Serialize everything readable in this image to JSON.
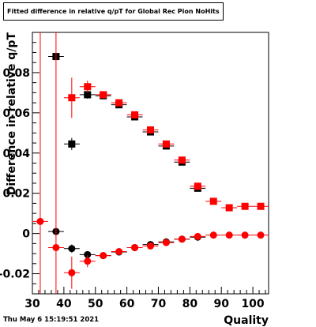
{
  "title": "Fitted difference in relative q/pT for Global Rec Pion NoHits",
  "timestamp": "Thu May  6 15:19:51 2021",
  "chart_data": {
    "type": "scatter",
    "xlabel": "Quality",
    "ylabel": "Difference in relative q/pT",
    "xlim": [
      30,
      105
    ],
    "ylim": [
      -0.03,
      0.1
    ],
    "xticks": [
      "30",
      "40",
      "50",
      "60",
      "70",
      "80",
      "90",
      "100"
    ],
    "yticks": [
      "-0.02",
      "0",
      "0.02",
      "0.04",
      "0.06",
      "0.08"
    ],
    "series": [
      {
        "color": "#000000",
        "marker": "square",
        "points": [
          {
            "x": 37.5,
            "y": 0.088,
            "xerr": 2.5,
            "yerr": 0.0
          },
          {
            "x": 42.5,
            "y": 0.0445,
            "xerr": 2.5,
            "yerr": 0.003
          },
          {
            "x": 47.5,
            "y": 0.069,
            "xerr": 2.5,
            "yerr": 0.002
          },
          {
            "x": 52.5,
            "y": 0.0685,
            "xerr": 2.5,
            "yerr": 0.001
          },
          {
            "x": 57.5,
            "y": 0.064,
            "xerr": 2.5,
            "yerr": 0.001
          },
          {
            "x": 62.5,
            "y": 0.058,
            "xerr": 2.5,
            "yerr": 0.0005
          },
          {
            "x": 67.5,
            "y": 0.0505,
            "xerr": 2.5,
            "yerr": 0.0005
          },
          {
            "x": 72.5,
            "y": 0.0435,
            "xerr": 2.5,
            "yerr": 0.0005
          },
          {
            "x": 77.5,
            "y": 0.0355,
            "xerr": 2.5,
            "yerr": 0.0005
          },
          {
            "x": 82.5,
            "y": 0.0225,
            "xerr": 2.5,
            "yerr": 0.0005
          }
        ]
      },
      {
        "color": "#ff0000",
        "marker": "square",
        "points": [
          {
            "x": 42.5,
            "y": 0.0675,
            "xerr": 2.5,
            "yerr": 0.01
          },
          {
            "x": 47.5,
            "y": 0.073,
            "xerr": 2.5,
            "yerr": 0.003
          },
          {
            "x": 52.5,
            "y": 0.069,
            "xerr": 2.5,
            "yerr": 0.001
          },
          {
            "x": 57.5,
            "y": 0.065,
            "xerr": 2.5,
            "yerr": 0.001
          },
          {
            "x": 62.5,
            "y": 0.059,
            "xerr": 2.5,
            "yerr": 0.0005
          },
          {
            "x": 67.5,
            "y": 0.0515,
            "xerr": 2.5,
            "yerr": 0.0005
          },
          {
            "x": 72.5,
            "y": 0.0445,
            "xerr": 2.5,
            "yerr": 0.0005
          },
          {
            "x": 77.5,
            "y": 0.0365,
            "xerr": 2.5,
            "yerr": 0.0005
          },
          {
            "x": 82.5,
            "y": 0.0235,
            "xerr": 2.5,
            "yerr": 0.0005
          },
          {
            "x": 87.5,
            "y": 0.016,
            "xerr": 2.5,
            "yerr": 0.0005
          },
          {
            "x": 92.5,
            "y": 0.0128,
            "xerr": 2.5,
            "yerr": 0.0005
          },
          {
            "x": 97.5,
            "y": 0.0135,
            "xerr": 2.5,
            "yerr": 0.0005
          },
          {
            "x": 102.5,
            "y": 0.0135,
            "xerr": 2.5,
            "yerr": 0.0005
          }
        ]
      },
      {
        "color": "#000000",
        "marker": "circle",
        "points": [
          {
            "x": 37.5,
            "y": 0.001,
            "xerr": 2.5,
            "yerr": 0.0
          },
          {
            "x": 42.5,
            "y": -0.0075,
            "xerr": 2.5,
            "yerr": 0.002
          },
          {
            "x": 47.5,
            "y": -0.0105,
            "xerr": 2.5,
            "yerr": 0.001
          },
          {
            "x": 52.5,
            "y": -0.011,
            "xerr": 2.5,
            "yerr": 0.0005
          },
          {
            "x": 57.5,
            "y": -0.0092,
            "xerr": 2.5,
            "yerr": 0.0003
          },
          {
            "x": 62.5,
            "y": -0.007,
            "xerr": 2.5,
            "yerr": 0.0003
          },
          {
            "x": 67.5,
            "y": -0.0055,
            "xerr": 2.5,
            "yerr": 0.0003
          },
          {
            "x": 72.5,
            "y": -0.0042,
            "xerr": 2.5,
            "yerr": 0.0003
          },
          {
            "x": 77.5,
            "y": -0.0028,
            "xerr": 2.5,
            "yerr": 0.0003
          },
          {
            "x": 82.5,
            "y": -0.0018,
            "xerr": 2.5,
            "yerr": 0.0003
          }
        ]
      },
      {
        "color": "#ff0000",
        "marker": "circle",
        "points": [
          {
            "x": 32.5,
            "y": 0.006,
            "xerr": 2.5,
            "yerr": 0.11
          },
          {
            "x": 37.5,
            "y": -0.007,
            "xerr": 2.5,
            "yerr": 0.11
          },
          {
            "x": 42.5,
            "y": -0.0195,
            "xerr": 2.5,
            "yerr": 0.008
          },
          {
            "x": 47.5,
            "y": -0.0138,
            "xerr": 2.5,
            "yerr": 0.003
          },
          {
            "x": 52.5,
            "y": -0.011,
            "xerr": 2.5,
            "yerr": 0.001
          },
          {
            "x": 57.5,
            "y": -0.009,
            "xerr": 2.5,
            "yerr": 0.0005
          },
          {
            "x": 62.5,
            "y": -0.007,
            "xerr": 2.5,
            "yerr": 0.0003
          },
          {
            "x": 67.5,
            "y": -0.0062,
            "xerr": 2.5,
            "yerr": 0.0003
          },
          {
            "x": 72.5,
            "y": -0.0045,
            "xerr": 2.5,
            "yerr": 0.0003
          },
          {
            "x": 77.5,
            "y": -0.0028,
            "xerr": 2.5,
            "yerr": 0.0003
          },
          {
            "x": 82.5,
            "y": -0.0015,
            "xerr": 2.5,
            "yerr": 0.0003
          },
          {
            "x": 87.5,
            "y": -0.0008,
            "xerr": 2.5,
            "yerr": 0.0003
          },
          {
            "x": 92.5,
            "y": -0.0008,
            "xerr": 2.5,
            "yerr": 0.0003
          },
          {
            "x": 97.5,
            "y": -0.0008,
            "xerr": 2.5,
            "yerr": 0.0003
          },
          {
            "x": 102.5,
            "y": -0.0008,
            "xerr": 2.5,
            "yerr": 0.0003
          }
        ]
      }
    ]
  }
}
